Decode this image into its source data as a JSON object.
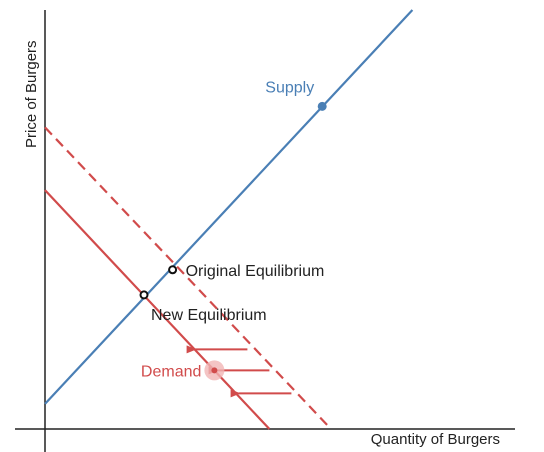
{
  "chart_data": {
    "type": "line",
    "title": "",
    "xlabel": "Quantity of Burgers",
    "ylabel": "Price of Burgers",
    "xlim": [
      0,
      10
    ],
    "ylim": [
      0,
      10
    ],
    "grid": false,
    "series": [
      {
        "name": "Supply",
        "color": "#4a7fb5",
        "style": "solid",
        "x": [
          0,
          8.35
        ],
        "y": [
          0.6,
          10
        ]
      },
      {
        "name": "",
        "color": "#d14b4b",
        "style": "dashed",
        "x": [
          0,
          6.5
        ],
        "y": [
          7.2,
          0
        ]
      },
      {
        "name": "Demand",
        "color": "#d14b4b",
        "style": "solid",
        "x": [
          0,
          5.1
        ],
        "y": [
          5.7,
          0
        ]
      }
    ],
    "labeled_points": [
      {
        "label": "Supply",
        "x": 6.3,
        "y": 7.7,
        "color": "#4a7fb5"
      },
      {
        "label": "Original Equilibrium",
        "x": 2.9,
        "y": 3.8,
        "color": "#222222"
      },
      {
        "label": "New Equilibrium",
        "x": 2.25,
        "y": 3.2,
        "color": "#222222"
      },
      {
        "label": "Demand",
        "x": 3.85,
        "y": 1.4,
        "color": "#d14b4b"
      }
    ],
    "shift_arrows": {
      "color": "#d14b4b",
      "direction": "left",
      "arrows": [
        {
          "x_from": 4.6,
          "x_to": 3.4,
          "y": 1.9
        },
        {
          "x_from": 5.1,
          "x_to": 3.9,
          "y": 1.4
        },
        {
          "x_from": 5.6,
          "x_to": 4.4,
          "y": 0.85
        }
      ]
    }
  }
}
